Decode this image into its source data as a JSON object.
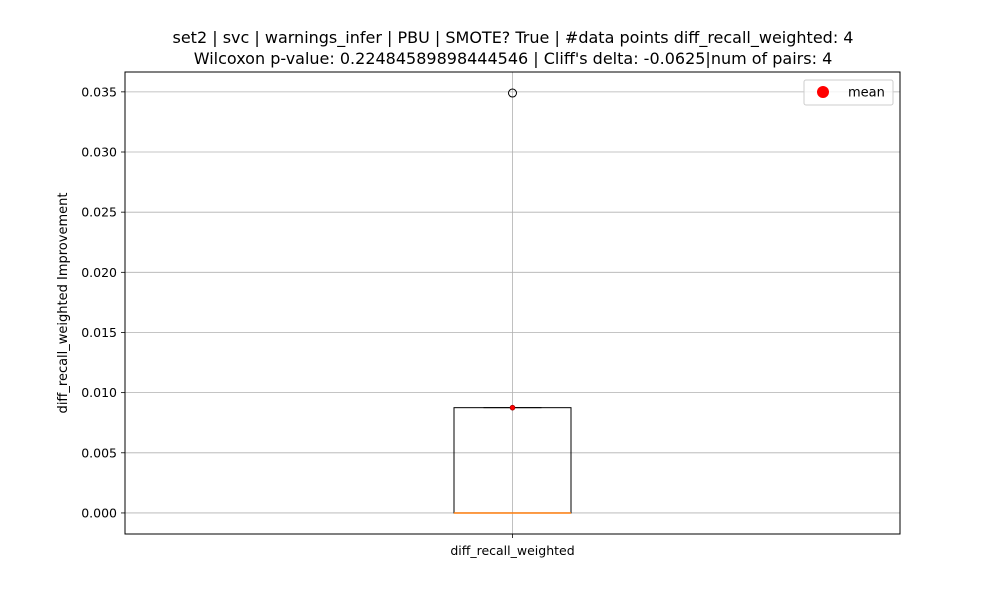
{
  "chart_data": {
    "type": "box",
    "title_lines": [
      "set2 | svc | warnings_infer | PBU | SMOTE? True | #data points diff_recall_weighted: 4",
      "Wilcoxon p-value: 0.22484589898444546 | Cliff's delta: -0.0625|num of pairs: 4"
    ],
    "xlabel": "",
    "ylabel": "diff_recall_weighted Improvement",
    "categories": [
      "diff_recall_weighted"
    ],
    "ylim": [
      -0.00175,
      0.03665
    ],
    "yticks": [
      0.0,
      0.005,
      0.01,
      0.015,
      0.02,
      0.025,
      0.03,
      0.035
    ],
    "ytick_labels": [
      "0.000",
      "0.005",
      "0.010",
      "0.015",
      "0.020",
      "0.025",
      "0.030",
      "0.035"
    ],
    "grid": true,
    "box": {
      "q1": 0.0,
      "median": 0.0,
      "q3": 0.00875,
      "whisker_low": 0.0,
      "whisker_high": 0.00875,
      "mean": 0.00875,
      "outliers": [
        0.0349
      ]
    },
    "legend": {
      "position": "upper right",
      "entries": [
        {
          "label": "mean",
          "color": "#ff0000",
          "marker": "circle"
        }
      ]
    },
    "colors": {
      "median": "#ff7f0e",
      "mean": "#ff0000",
      "box": "#000000",
      "grid": "#b0b0b0"
    }
  }
}
